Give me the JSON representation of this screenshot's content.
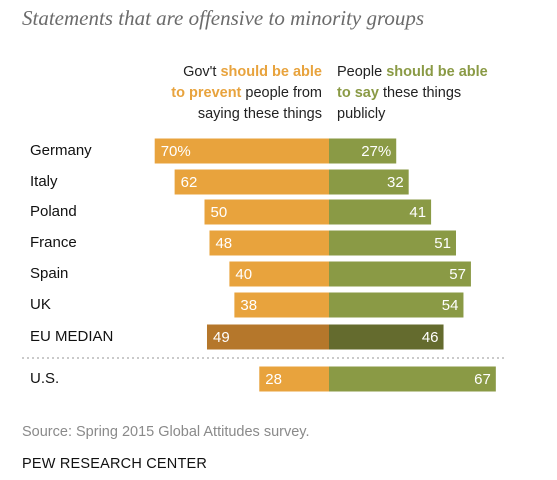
{
  "chart_data": {
    "type": "diverging-bar",
    "title": "Statements that are offensive to minority groups",
    "left_header": [
      [
        {
          "text": "Gov't "
        },
        {
          "text": "should be able",
          "color": "#e8a33d"
        }
      ],
      [
        {
          "text": "to prevent",
          "color": "#e8a33d"
        },
        {
          "text": " people from"
        }
      ],
      [
        {
          "text": "saying these things"
        }
      ]
    ],
    "right_header": [
      [
        {
          "text": "People "
        },
        {
          "text": "should be able",
          "color": "#8a9a45"
        }
      ],
      [
        {
          "text": "to say",
          "color": "#8a9a45"
        },
        {
          "text": " these things"
        }
      ],
      [
        {
          "text": "publicly"
        }
      ]
    ],
    "categories": [
      "Germany",
      "Italy",
      "Poland",
      "France",
      "Spain",
      "UK",
      "EU MEDIAN",
      "U.S."
    ],
    "series": [
      {
        "name": "Gov't should be able to prevent people from saying these things",
        "side": "left",
        "colors": [
          "#e8a33d",
          "#e8a33d",
          "#e8a33d",
          "#e8a33d",
          "#e8a33d",
          "#e8a33d",
          "#b5772b",
          "#e8a33d"
        ],
        "values": [
          70,
          62,
          50,
          48,
          40,
          38,
          49,
          28
        ],
        "value_labels": [
          "70%",
          "62",
          "50",
          "48",
          "40",
          "38",
          "49",
          "28"
        ]
      },
      {
        "name": "People should be able to say these things publicly",
        "side": "right",
        "colors": [
          "#8a9a45",
          "#8a9a45",
          "#8a9a45",
          "#8a9a45",
          "#8a9a45",
          "#8a9a45",
          "#646b2e",
          "#8a9a45"
        ],
        "values": [
          27,
          32,
          41,
          51,
          57,
          54,
          46,
          67
        ],
        "value_labels": [
          "27%",
          "32",
          "41",
          "51",
          "57",
          "54",
          "46",
          "67"
        ]
      }
    ],
    "source": "Source: Spring 2015 Global Attitudes survey.",
    "footer": "PEW RESEARCH CENTER"
  }
}
